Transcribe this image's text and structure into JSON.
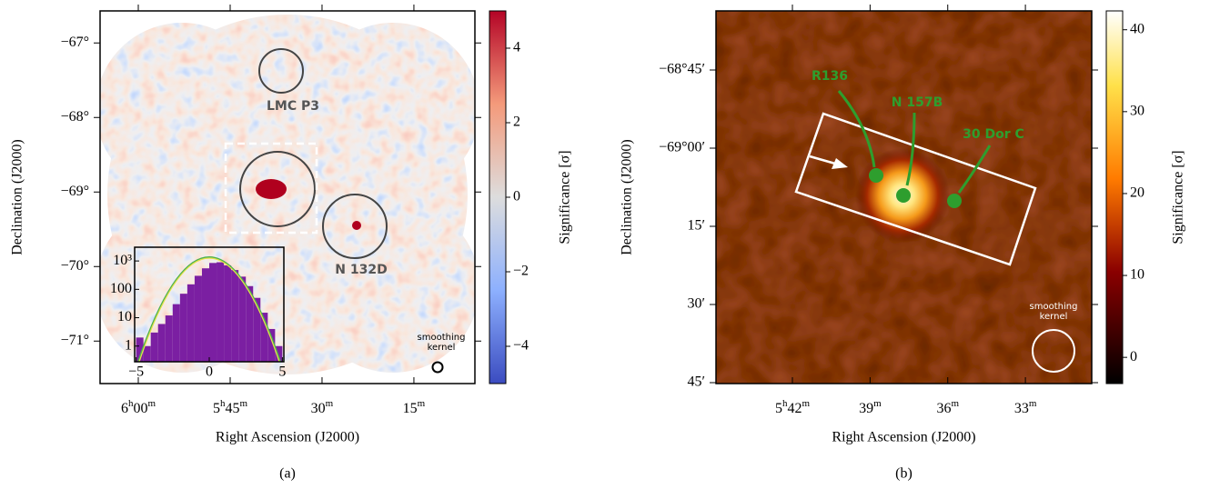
{
  "chart_data": [
    {
      "type": "image",
      "caption": "(a)",
      "xlabel": "Right Ascension (J2000)",
      "ylabel": "Declination (J2000)",
      "xlim": [
        6.104,
        5.084
      ],
      "ylim": [
        -71.57,
        -66.57
      ],
      "xticks": [
        {
          "value": 6.0,
          "label": "6h00m"
        },
        {
          "value": 5.75,
          "label": "5h45m"
        },
        {
          "value": 5.5,
          "label": "30m"
        },
        {
          "value": 5.25,
          "label": "15m"
        }
      ],
      "yticks": [
        {
          "value": -67,
          "label": "−67°"
        },
        {
          "value": -68,
          "label": "−68°"
        },
        {
          "value": -69,
          "label": "−69°"
        },
        {
          "value": -70,
          "label": "−70°"
        },
        {
          "value": -71,
          "label": "−71°"
        }
      ],
      "colorbar": {
        "label": "Significance [σ]",
        "lim": [
          -5,
          5
        ],
        "colormap": "coolwarm",
        "ticks": [
          4,
          2,
          0,
          {
            "value": -2,
            "label": "−2"
          },
          {
            "value": -4,
            "label": "−4"
          }
        ]
      },
      "annotations": [
        "LMC P3",
        "N 132D",
        "smoothing kernel"
      ]
    },
    {
      "type": "image",
      "caption": "(b)",
      "xlabel": "Right Ascension (J2000)",
      "ylabel": "Declination (J2000)",
      "xlim": [
        5.7492,
        5.5073
      ],
      "ylim": [
        -69.7529,
        -68.561
      ],
      "xticks": [
        {
          "value": 5.7,
          "label": "5h42m"
        },
        {
          "value": 5.65,
          "label": "39m"
        },
        {
          "value": 5.6,
          "label": "36m"
        },
        {
          "value": 5.55,
          "label": "33m"
        }
      ],
      "yticks": [
        {
          "value": -68.75,
          "label": "−68°45′"
        },
        {
          "value": -69.0,
          "label": "−69°00′"
        },
        {
          "value": -69.25,
          "label": "15′"
        },
        {
          "value": -69.5,
          "label": "30′"
        },
        {
          "value": -69.75,
          "label": "45′"
        }
      ],
      "colorbar": {
        "label": "Significance [σ]",
        "lim": [
          -3.2,
          42.3
        ],
        "colormap": "afmhot",
        "ticks": [
          40,
          30,
          20,
          10,
          0
        ]
      },
      "annotations": [
        "R136",
        "N 157B",
        "30 Dor C",
        "smoothing kernel"
      ]
    },
    {
      "type": "histogram",
      "color": "#7b1fa2",
      "yscale": "log",
      "bins": [
        -5,
        -4.5,
        -4,
        -3.5,
        -3,
        -2.5,
        -2,
        -1.5,
        -1,
        -0.5,
        0,
        0.5,
        1,
        1.5,
        2,
        2.5,
        3,
        3.5,
        4,
        4.5,
        5
      ],
      "counts": [
        2,
        1,
        3,
        6,
        12,
        30,
        70,
        150,
        300,
        550,
        850,
        900,
        700,
        480,
        280,
        130,
        50,
        15,
        4,
        1
      ],
      "xlim": [
        -5.1,
        5.1
      ],
      "ylim": [
        0.28,
        3050
      ],
      "xticks": [
        {
          "value": -5,
          "label": "−5"
        },
        0,
        5
      ],
      "yticks": [
        1,
        10,
        100,
        {
          "value": 1000,
          "label": "10³"
        }
      ]
    }
  ]
}
